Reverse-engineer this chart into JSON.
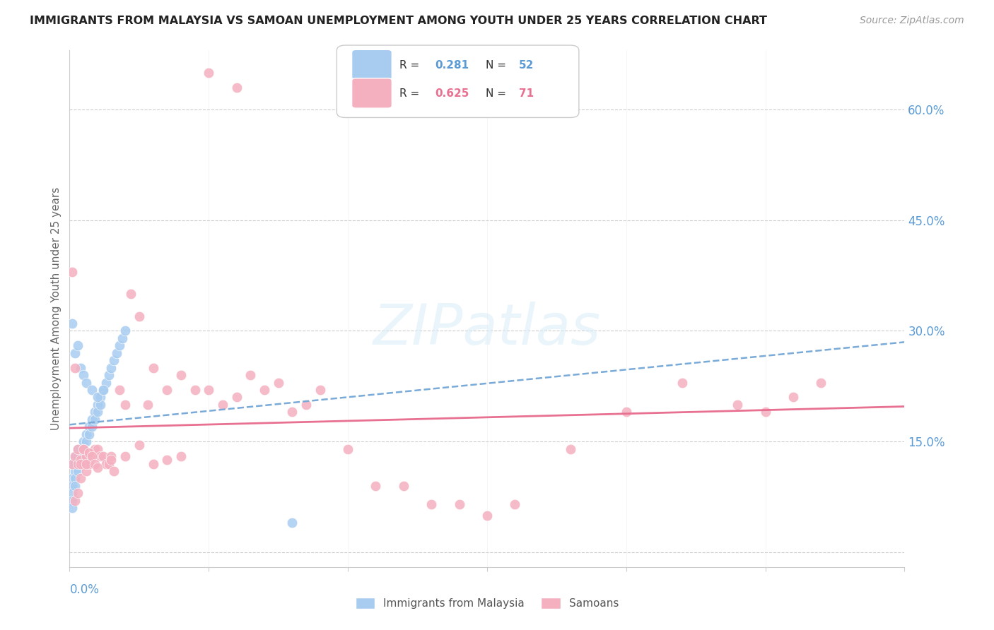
{
  "title": "IMMIGRANTS FROM MALAYSIA VS SAMOAN UNEMPLOYMENT AMONG YOUTH UNDER 25 YEARS CORRELATION CHART",
  "source": "Source: ZipAtlas.com",
  "ylabel": "Unemployment Among Youth under 25 years",
  "yticks": [
    0.0,
    0.15,
    0.3,
    0.45,
    0.6
  ],
  "ytick_labels": [
    "",
    "15.0%",
    "30.0%",
    "45.0%",
    "60.0%"
  ],
  "xlim": [
    0.0,
    0.3
  ],
  "ylim": [
    -0.02,
    0.68
  ],
  "color_blue": "#A8CCF0",
  "color_pink": "#F5B0C0",
  "color_blue_line": "#7AAAD8",
  "color_pink_line": "#E87090",
  "color_axis_label": "#5B9BD5",
  "blue_scatter_x": [
    0.001,
    0.001,
    0.001,
    0.001,
    0.001,
    0.001,
    0.002,
    0.002,
    0.002,
    0.002,
    0.002,
    0.003,
    0.003,
    0.003,
    0.003,
    0.004,
    0.004,
    0.004,
    0.005,
    0.005,
    0.005,
    0.006,
    0.006,
    0.007,
    0.007,
    0.008,
    0.008,
    0.009,
    0.009,
    0.01,
    0.01,
    0.011,
    0.011,
    0.012,
    0.013,
    0.014,
    0.015,
    0.016,
    0.017,
    0.018,
    0.019,
    0.02,
    0.001,
    0.002,
    0.003,
    0.004,
    0.005,
    0.006,
    0.008,
    0.01,
    0.012,
    0.08
  ],
  "blue_scatter_y": [
    0.12,
    0.1,
    0.09,
    0.08,
    0.07,
    0.06,
    0.13,
    0.12,
    0.11,
    0.1,
    0.09,
    0.14,
    0.13,
    0.12,
    0.11,
    0.14,
    0.13,
    0.12,
    0.15,
    0.14,
    0.13,
    0.16,
    0.15,
    0.17,
    0.16,
    0.18,
    0.17,
    0.19,
    0.18,
    0.2,
    0.19,
    0.21,
    0.2,
    0.22,
    0.23,
    0.24,
    0.25,
    0.26,
    0.27,
    0.28,
    0.29,
    0.3,
    0.31,
    0.27,
    0.28,
    0.25,
    0.24,
    0.23,
    0.22,
    0.21,
    0.22,
    0.04
  ],
  "pink_scatter_x": [
    0.001,
    0.001,
    0.002,
    0.002,
    0.003,
    0.003,
    0.004,
    0.004,
    0.005,
    0.005,
    0.006,
    0.006,
    0.007,
    0.008,
    0.009,
    0.01,
    0.011,
    0.012,
    0.013,
    0.014,
    0.015,
    0.016,
    0.018,
    0.02,
    0.022,
    0.025,
    0.028,
    0.03,
    0.035,
    0.04,
    0.045,
    0.05,
    0.055,
    0.06,
    0.065,
    0.07,
    0.075,
    0.08,
    0.085,
    0.09,
    0.1,
    0.11,
    0.12,
    0.13,
    0.14,
    0.15,
    0.16,
    0.18,
    0.2,
    0.22,
    0.24,
    0.25,
    0.26,
    0.27,
    0.002,
    0.003,
    0.004,
    0.005,
    0.006,
    0.007,
    0.008,
    0.009,
    0.01,
    0.015,
    0.02,
    0.025,
    0.03,
    0.035,
    0.04,
    0.05,
    0.06
  ],
  "pink_scatter_y": [
    0.38,
    0.12,
    0.13,
    0.25,
    0.14,
    0.12,
    0.125,
    0.1,
    0.14,
    0.12,
    0.13,
    0.11,
    0.12,
    0.13,
    0.14,
    0.14,
    0.13,
    0.13,
    0.12,
    0.12,
    0.13,
    0.11,
    0.22,
    0.2,
    0.35,
    0.32,
    0.2,
    0.25,
    0.22,
    0.24,
    0.22,
    0.22,
    0.2,
    0.21,
    0.24,
    0.22,
    0.23,
    0.19,
    0.2,
    0.22,
    0.14,
    0.09,
    0.09,
    0.065,
    0.065,
    0.05,
    0.065,
    0.14,
    0.19,
    0.23,
    0.2,
    0.19,
    0.21,
    0.23,
    0.07,
    0.08,
    0.12,
    0.14,
    0.12,
    0.135,
    0.13,
    0.12,
    0.115,
    0.125,
    0.13,
    0.145,
    0.12,
    0.125,
    0.13,
    0.65,
    0.63
  ]
}
